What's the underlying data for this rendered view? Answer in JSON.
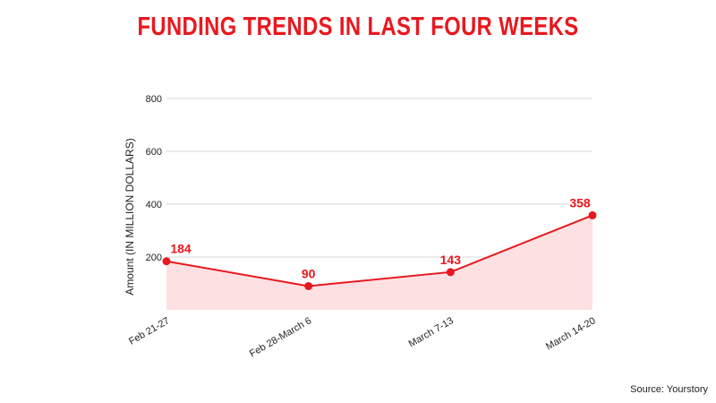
{
  "chart_data": {
    "type": "area",
    "title": "FUNDING TRENDS IN LAST FOUR WEEKS",
    "ylabel": "Amount (IN MILLION DOLLARS)",
    "xlabel": "",
    "categories": [
      "Feb 21-27",
      "Feb 28-March 6",
      "March 7-13",
      "March 14-20"
    ],
    "values": [
      184,
      90,
      143,
      358
    ],
    "data_labels": [
      "184",
      "90",
      "143",
      "358"
    ],
    "ylim": [
      0,
      800
    ],
    "yticks": [
      "200",
      "400",
      "600",
      "800"
    ],
    "grid": true,
    "legend": "none",
    "colors": {
      "line": "#e8181f",
      "fill": "#fde1e2",
      "title": "#e8181f",
      "grid": "#d9d9d9"
    }
  },
  "source": "Source: Yourstory"
}
